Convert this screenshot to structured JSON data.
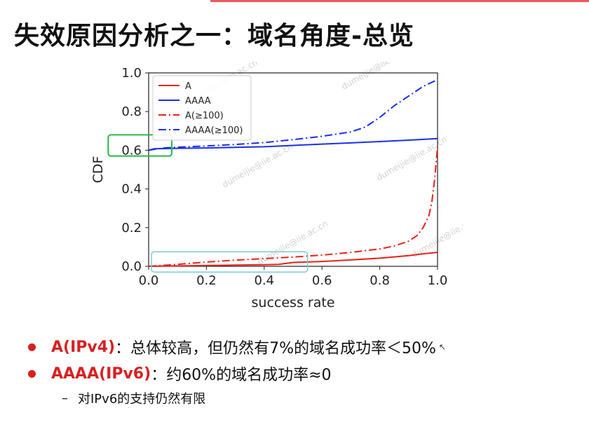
{
  "slide": {
    "title": "失效原因分析之一：域名角度-总览",
    "bullets": [
      {
        "label": "A(IPv4)",
        "text": "：总体较高，但仍然有7%的域名成功率＜50%"
      },
      {
        "label": "AAAA(IPv6)",
        "text": "：约60%的域名成功率≈0"
      }
    ],
    "sub_bullet": "对IPv6的支持仍然有限",
    "sub_bullet_marker": "–",
    "watermark": "dumeijie@iie.ac.cn"
  },
  "chart_data": {
    "type": "line",
    "title": "",
    "xlabel": "success rate",
    "ylabel": "CDF",
    "xlim": [
      0.0,
      1.0
    ],
    "ylim": [
      0.0,
      1.0
    ],
    "xticks": [
      "0.0",
      "0.2",
      "0.4",
      "0.6",
      "0.8",
      "1.0"
    ],
    "yticks": [
      "0.0",
      "0.2",
      "0.4",
      "0.6",
      "0.8",
      "1.0"
    ],
    "grid": false,
    "legend_position": "top-left",
    "series": [
      {
        "name": "A",
        "color": "#e8211b",
        "style": "solid",
        "x": [
          0.0,
          0.1,
          0.2,
          0.3,
          0.4,
          0.45,
          0.5,
          0.6,
          0.7,
          0.8,
          0.9,
          0.95,
          1.0
        ],
        "y": [
          0.0,
          0.002,
          0.004,
          0.006,
          0.008,
          0.01,
          0.02,
          0.025,
          0.033,
          0.042,
          0.055,
          0.065,
          0.072
        ]
      },
      {
        "name": "AAAA",
        "color": "#1a2ee8",
        "style": "solid",
        "x": [
          0.0,
          0.02,
          0.1,
          0.2,
          0.3,
          0.4,
          0.5,
          0.6,
          0.7,
          0.8,
          0.9,
          1.0
        ],
        "y": [
          0.6,
          0.608,
          0.61,
          0.612,
          0.615,
          0.618,
          0.625,
          0.632,
          0.638,
          0.645,
          0.652,
          0.66
        ]
      },
      {
        "name": "A(≥100)",
        "color": "#e8211b",
        "style": "dashdot",
        "x": [
          0.0,
          0.1,
          0.2,
          0.3,
          0.4,
          0.5,
          0.6,
          0.7,
          0.8,
          0.85,
          0.9,
          0.93,
          0.95,
          0.97,
          0.98,
          0.99,
          1.0
        ],
        "y": [
          0.0,
          0.01,
          0.022,
          0.032,
          0.04,
          0.048,
          0.058,
          0.072,
          0.09,
          0.105,
          0.13,
          0.16,
          0.2,
          0.26,
          0.33,
          0.45,
          0.62
        ]
      },
      {
        "name": "AAAA(≥100)",
        "color": "#1a2ee8",
        "style": "dashdot",
        "x": [
          0.0,
          0.05,
          0.1,
          0.2,
          0.3,
          0.4,
          0.5,
          0.6,
          0.7,
          0.75,
          0.8,
          0.85,
          0.9,
          0.95,
          1.0
        ],
        "y": [
          0.6,
          0.612,
          0.616,
          0.622,
          0.63,
          0.64,
          0.655,
          0.672,
          0.695,
          0.72,
          0.77,
          0.83,
          0.88,
          0.93,
          0.965
        ]
      }
    ],
    "annotations": [
      {
        "type": "box",
        "color": "#22bb44",
        "x_range": [
          -0.14,
          0.08
        ],
        "y_range": [
          0.57,
          0.68
        ]
      },
      {
        "type": "box",
        "color": "#7ec8d8",
        "x_range": [
          0.01,
          0.55
        ],
        "y_range": [
          -0.03,
          0.075
        ]
      }
    ]
  }
}
